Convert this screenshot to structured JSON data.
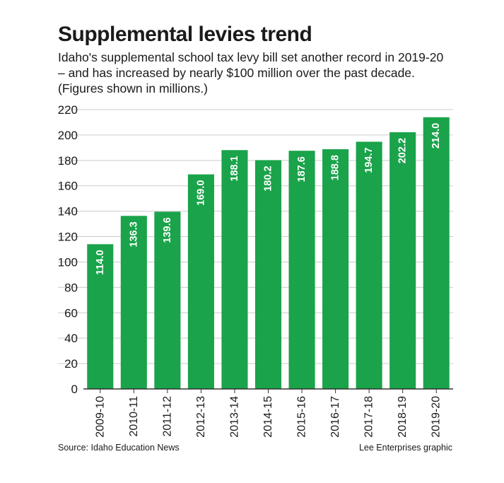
{
  "header": {
    "title": "Supplemental levies trend",
    "subtitle_lines": [
      "Idaho's supplemental school tax levy bill set another record in 2019-20",
      "– and has increased by nearly $100 million over the past decade.",
      "(Figures shown in millions.)"
    ]
  },
  "footer": {
    "source": "Source: Idaho Education News",
    "credit": "Lee Enterprises graphic"
  },
  "colors": {
    "bar": "#1aa34a",
    "grid": "#cccccc",
    "axis": "#333333"
  },
  "chart_data": {
    "type": "bar",
    "title": "Supplemental levies trend",
    "xlabel": "",
    "ylabel": "",
    "ylim": [
      0,
      220
    ],
    "yticks": [
      0,
      20,
      40,
      60,
      80,
      100,
      120,
      140,
      160,
      180,
      200,
      220
    ],
    "grid": true,
    "categories": [
      "2009-10",
      "2010-11",
      "2011-12",
      "2012-13",
      "2013-14",
      "2014-15",
      "2015-16",
      "2016-17",
      "2017-18",
      "2018-19",
      "2019-20"
    ],
    "values": [
      114.0,
      136.3,
      139.6,
      169.0,
      188.1,
      180.2,
      187.6,
      188.8,
      194.7,
      202.2,
      214.0
    ],
    "data_labels": [
      "114.0",
      "136.3",
      "139.6",
      "169.0",
      "188.1",
      "180.2",
      "187.6",
      "188.8",
      "194.7",
      "202.2",
      "214.0"
    ]
  }
}
